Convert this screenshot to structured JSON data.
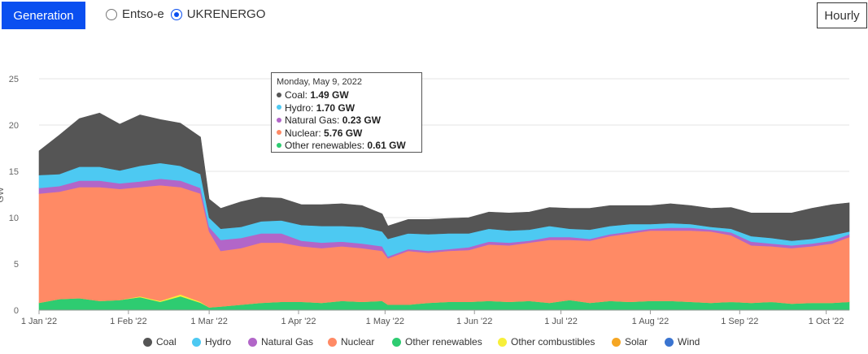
{
  "header": {
    "generation_label": "Generation",
    "sources": [
      {
        "label": "Entso-e",
        "selected": false
      },
      {
        "label": "UKRENERGO",
        "selected": true
      }
    ],
    "hourly_label": "Hourly"
  },
  "chart_data": {
    "type": "area",
    "stacked": true,
    "ylabel": "GW",
    "ylim": [
      0,
      25
    ],
    "yticks": [
      0,
      5,
      10,
      15,
      20,
      25
    ],
    "xlim": [
      "2022-01-01",
      "2022-10-09"
    ],
    "xticks": [
      {
        "date": "2022-01-01",
        "label": "1 Jan '22"
      },
      {
        "date": "2022-02-01",
        "label": "1 Feb '22"
      },
      {
        "date": "2022-03-01",
        "label": "1 Mar '22"
      },
      {
        "date": "2022-04-01",
        "label": "1 Apr '22"
      },
      {
        "date": "2022-05-01",
        "label": "1 May '22"
      },
      {
        "date": "2022-06-01",
        "label": "1 Jun '22"
      },
      {
        "date": "2022-07-01",
        "label": "1 Jul '22"
      },
      {
        "date": "2022-08-01",
        "label": "1 Aug '22"
      },
      {
        "date": "2022-09-01",
        "label": "1 Sep '22"
      },
      {
        "date": "2022-10-01",
        "label": "1 Oct '22"
      }
    ],
    "grid": true,
    "x": [
      "2022-01-01",
      "2022-01-08",
      "2022-01-15",
      "2022-01-22",
      "2022-01-29",
      "2022-02-05",
      "2022-02-12",
      "2022-02-19",
      "2022-02-26",
      "2022-03-01",
      "2022-03-05",
      "2022-03-12",
      "2022-03-19",
      "2022-03-26",
      "2022-04-02",
      "2022-04-09",
      "2022-04-16",
      "2022-04-23",
      "2022-04-30",
      "2022-05-02",
      "2022-05-09",
      "2022-05-16",
      "2022-05-23",
      "2022-05-30",
      "2022-06-06",
      "2022-06-13",
      "2022-06-20",
      "2022-06-27",
      "2022-07-04",
      "2022-07-11",
      "2022-07-18",
      "2022-07-25",
      "2022-08-01",
      "2022-08-08",
      "2022-08-15",
      "2022-08-22",
      "2022-08-29",
      "2022-09-05",
      "2022-09-12",
      "2022-09-19",
      "2022-09-26",
      "2022-10-03",
      "2022-10-09"
    ],
    "series": [
      {
        "name": "Other renewables",
        "color": "#2ecc71",
        "values": [
          0.8,
          1.2,
          1.3,
          1.0,
          1.1,
          1.4,
          0.9,
          1.5,
          0.8,
          0.3,
          0.4,
          0.6,
          0.8,
          0.9,
          0.9,
          0.8,
          1.0,
          0.9,
          1.0,
          0.6,
          0.6,
          0.8,
          0.9,
          0.9,
          1.0,
          0.9,
          1.0,
          0.8,
          1.1,
          0.8,
          1.0,
          0.9,
          1.0,
          1.0,
          0.9,
          0.8,
          0.9,
          0.8,
          0.9,
          0.7,
          0.8,
          0.8,
          0.9
        ]
      },
      {
        "name": "Other combustibles",
        "color": "#f7ef3a",
        "values": [
          0,
          0,
          0,
          0,
          0,
          0.1,
          0.1,
          0.2,
          0.1,
          0,
          0,
          0,
          0,
          0,
          0,
          0,
          0,
          0,
          0,
          0,
          0,
          0,
          0,
          0,
          0,
          0,
          0,
          0,
          0,
          0,
          0,
          0,
          0,
          0,
          0,
          0,
          0,
          0,
          0,
          0,
          0,
          0,
          0
        ]
      },
      {
        "name": "Nuclear",
        "color": "#ff8a65",
        "values": [
          11.8,
          11.6,
          12.0,
          12.3,
          12.0,
          11.8,
          12.5,
          11.6,
          11.7,
          8.2,
          6.0,
          6.1,
          6.5,
          6.4,
          6.0,
          5.9,
          5.9,
          5.8,
          5.4,
          5.0,
          5.8,
          5.4,
          5.5,
          5.6,
          6.1,
          6.1,
          6.3,
          6.8,
          6.5,
          6.7,
          7.0,
          7.4,
          7.6,
          7.6,
          7.7,
          7.7,
          7.2,
          6.2,
          6.0,
          6.0,
          6.1,
          6.4,
          7.0
        ]
      },
      {
        "name": "Natural Gas",
        "color": "#b266c8",
        "values": [
          0.6,
          0.6,
          0.7,
          0.7,
          0.6,
          0.6,
          0.7,
          0.7,
          0.6,
          0.5,
          1.2,
          1.1,
          1.0,
          1.0,
          0.6,
          0.6,
          0.5,
          0.5,
          0.5,
          0.2,
          0.2,
          0.2,
          0.2,
          0.3,
          0.3,
          0.3,
          0.2,
          0.3,
          0.3,
          0.2,
          0.2,
          0.2,
          0.2,
          0.3,
          0.3,
          0.2,
          0.3,
          0.4,
          0.3,
          0.3,
          0.3,
          0.3,
          0.3
        ]
      },
      {
        "name": "Hydro",
        "color": "#4dc9f2",
        "values": [
          1.4,
          1.3,
          1.5,
          1.5,
          1.4,
          1.7,
          1.7,
          1.6,
          1.5,
          1.0,
          1.2,
          1.2,
          1.3,
          1.4,
          1.7,
          1.8,
          1.7,
          1.8,
          1.6,
          1.9,
          1.7,
          1.8,
          1.7,
          1.5,
          1.4,
          1.3,
          1.2,
          1.2,
          0.9,
          1.0,
          0.9,
          0.8,
          0.5,
          0.5,
          0.4,
          0.3,
          0.4,
          0.6,
          0.6,
          0.5,
          0.5,
          0.6,
          0.3
        ]
      },
      {
        "name": "Coal",
        "color": "#555555",
        "values": [
          2.6,
          4.2,
          5.2,
          5.8,
          5.0,
          5.5,
          4.7,
          4.6,
          4.0,
          2.0,
          2.2,
          2.7,
          2.6,
          2.4,
          2.2,
          2.3,
          2.4,
          2.3,
          1.9,
          1.4,
          1.5,
          1.6,
          1.6,
          1.7,
          1.8,
          1.9,
          1.9,
          2.0,
          2.2,
          2.3,
          2.2,
          2.0,
          2.0,
          2.1,
          2.0,
          2.0,
          2.3,
          2.5,
          2.7,
          3.0,
          3.3,
          3.3,
          3.1
        ]
      },
      {
        "name": "Solar",
        "color": "#f5a623",
        "values": [
          0,
          0,
          0,
          0,
          0,
          0,
          0,
          0,
          0,
          0,
          0,
          0,
          0,
          0,
          0,
          0,
          0,
          0,
          0,
          0,
          0,
          0,
          0,
          0,
          0,
          0,
          0,
          0,
          0,
          0,
          0,
          0,
          0,
          0,
          0,
          0,
          0,
          0,
          0,
          0,
          0,
          0,
          0
        ]
      },
      {
        "name": "Wind",
        "color": "#3a74d0",
        "values": [
          0,
          0,
          0,
          0,
          0,
          0,
          0,
          0,
          0,
          0,
          0,
          0,
          0,
          0,
          0,
          0,
          0,
          0,
          0,
          0,
          0,
          0,
          0,
          0,
          0,
          0,
          0,
          0,
          0,
          0,
          0,
          0,
          0,
          0,
          0,
          0,
          0,
          0,
          0,
          0,
          0,
          0,
          0
        ]
      }
    ],
    "legend": {
      "placement": "bottom",
      "items": [
        {
          "label": "Coal",
          "color": "#555555"
        },
        {
          "label": "Hydro",
          "color": "#4dc9f2"
        },
        {
          "label": "Natural Gas",
          "color": "#b266c8"
        },
        {
          "label": "Nuclear",
          "color": "#ff8a65"
        },
        {
          "label": "Other renewables",
          "color": "#2ecc71"
        },
        {
          "label": "Other combustibles",
          "color": "#f7ef3a"
        },
        {
          "label": "Solar",
          "color": "#f5a623"
        },
        {
          "label": "Wind",
          "color": "#3a74d0"
        }
      ]
    },
    "tooltip": {
      "date": "Monday, May 9, 2022",
      "rows": [
        {
          "label": "Coal:",
          "value": "1.49 GW",
          "color": "#555555"
        },
        {
          "label": "Hydro:",
          "value": "1.70 GW",
          "color": "#4dc9f2"
        },
        {
          "label": "Natural Gas:",
          "value": "0.23 GW",
          "color": "#b266c8"
        },
        {
          "label": "Nuclear:",
          "value": "5.76 GW",
          "color": "#ff8a65"
        },
        {
          "label": "Other renewables:",
          "value": "0.61 GW",
          "color": "#2ecc71"
        }
      ]
    }
  }
}
